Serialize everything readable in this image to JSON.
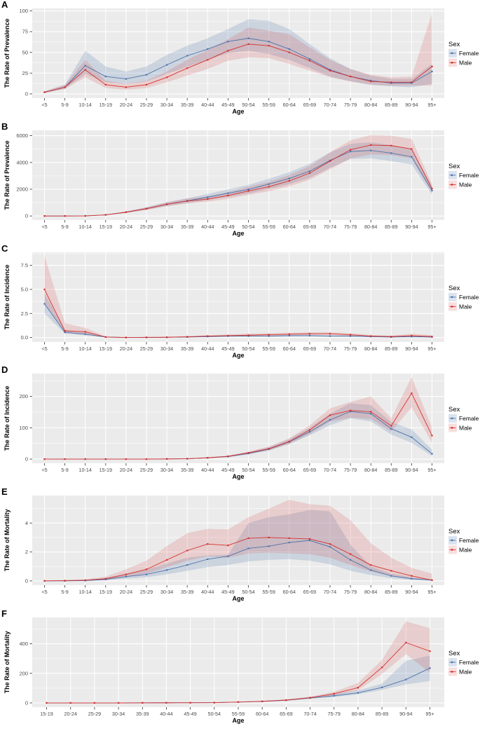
{
  "figure_title": "",
  "legend": {
    "title": "Sex",
    "items": [
      {
        "label": "Female"
      },
      {
        "label": "Male"
      }
    ]
  },
  "colors": {
    "female_line": "#4D74AB",
    "male_line": "#D62F2F",
    "female_ribbon": "rgba(77,116,171,0.20)",
    "male_ribbon": "rgba(214,47,47,0.16)",
    "panel_bg": "#EBEBEB",
    "grid": "#FFFFFF",
    "tick_text": "#4D4D4D",
    "axis_text": "#000000"
  },
  "chart_data": [
    {
      "panel": "A",
      "type": "line",
      "xlabel": "Age",
      "ylabel": "The Rate of Prevalence",
      "categories": [
        "<5",
        "5-9",
        "10-14",
        "15-19",
        "20-24",
        "25-29",
        "30-34",
        "35-39",
        "40-44",
        "45-49",
        "50-54",
        "55-59",
        "60-64",
        "65-69",
        "70-74",
        "75-79",
        "80-84",
        "85-89",
        "90-94",
        "95+"
      ],
      "yticks": [
        0,
        25,
        50,
        75,
        100
      ],
      "ytick_labels": [
        "0",
        "25",
        "50",
        "75",
        "100"
      ],
      "ylim": [
        -5,
        103
      ],
      "series": [
        {
          "name": "Female",
          "values": [
            2,
            8,
            34,
            21,
            18,
            23,
            35,
            46,
            54,
            63,
            67,
            63,
            54,
            42,
            29,
            21,
            16,
            13,
            13,
            27
          ],
          "lower": [
            1,
            6,
            24,
            14,
            12,
            15,
            24,
            33,
            41,
            49,
            52,
            48,
            41,
            31,
            21,
            15,
            11,
            9,
            8,
            12
          ],
          "upper": [
            3,
            11,
            52,
            33,
            27,
            33,
            47,
            58,
            67,
            78,
            90,
            88,
            78,
            60,
            43,
            30,
            22,
            18,
            18,
            36
          ]
        },
        {
          "name": "Male",
          "values": [
            2,
            8,
            29,
            11,
            8,
            11,
            20,
            31,
            41,
            52,
            60,
            58,
            50,
            40,
            28,
            21,
            15,
            14,
            14,
            33
          ],
          "lower": [
            1,
            6,
            20,
            7,
            5,
            7,
            14,
            22,
            30,
            40,
            44,
            43,
            36,
            28,
            20,
            15,
            11,
            10,
            10,
            10
          ],
          "upper": [
            3,
            11,
            41,
            16,
            12,
            16,
            27,
            41,
            53,
            66,
            80,
            76,
            72,
            56,
            41,
            30,
            23,
            20,
            21,
            97
          ]
        }
      ]
    },
    {
      "panel": "B",
      "type": "line",
      "xlabel": "Age",
      "ylabel": "The Rate of Prevalence",
      "categories": [
        "<5",
        "5-9",
        "10-14",
        "15-19",
        "20-24",
        "25-29",
        "30-34",
        "35-39",
        "40-44",
        "45-49",
        "50-54",
        "55-59",
        "60-64",
        "65-69",
        "70-74",
        "75-79",
        "80-84",
        "85-89",
        "90-94",
        "95+"
      ],
      "yticks": [
        0,
        2000,
        4000,
        6000
      ],
      "ytick_labels": [
        "0",
        "2000",
        "4000",
        "6000"
      ],
      "ylim": [
        -300,
        6400
      ],
      "series": [
        {
          "name": "Female",
          "values": [
            0,
            0,
            5,
            80,
            280,
            550,
            880,
            1130,
            1400,
            1700,
            1980,
            2380,
            2800,
            3350,
            4150,
            4820,
            4900,
            4700,
            4420,
            1900
          ],
          "lower": [
            0,
            0,
            4,
            65,
            230,
            460,
            740,
            950,
            1180,
            1440,
            1680,
            2020,
            2380,
            2850,
            3600,
            4250,
            4300,
            4100,
            3850,
            1600
          ],
          "upper": [
            0,
            0,
            6,
            95,
            330,
            650,
            1030,
            1320,
            1640,
            1990,
            2320,
            2780,
            3270,
            3900,
            4750,
            5400,
            5500,
            5300,
            5000,
            2250
          ]
        },
        {
          "name": "Male",
          "values": [
            0,
            0,
            5,
            80,
            280,
            545,
            870,
            1120,
            1260,
            1520,
            1870,
            2180,
            2620,
            3200,
            4100,
            4950,
            5300,
            5260,
            5000,
            2050
          ],
          "lower": [
            0,
            0,
            4,
            65,
            230,
            455,
            730,
            940,
            1060,
            1280,
            1580,
            1840,
            2210,
            2700,
            3500,
            4300,
            4600,
            4550,
            4300,
            1750
          ],
          "upper": [
            0,
            0,
            6,
            95,
            330,
            640,
            1020,
            1310,
            1470,
            1780,
            2180,
            2540,
            3050,
            3720,
            4750,
            5650,
            6050,
            6000,
            5750,
            2400
          ]
        }
      ]
    },
    {
      "panel": "C",
      "type": "line",
      "xlabel": "Age",
      "ylabel": "The Rate of Incidence",
      "categories": [
        "<5",
        "5-9",
        "10-14",
        "15-19",
        "20-24",
        "25-29",
        "30-34",
        "35-39",
        "40-44",
        "45-49",
        "50-54",
        "55-59",
        "60-64",
        "65-69",
        "70-74",
        "75-79",
        "80-84",
        "85-89",
        "90-94",
        "95+"
      ],
      "yticks": [
        0,
        2.5,
        5,
        7.5
      ],
      "ytick_labels": [
        "0.0",
        "2.5",
        "5.0",
        "7.5"
      ],
      "ylim": [
        -0.45,
        8.85
      ],
      "series": [
        {
          "name": "Female",
          "values": [
            3.5,
            0.55,
            0.35,
            0.05,
            0.01,
            0.01,
            0.02,
            0.05,
            0.1,
            0.15,
            0.15,
            0.15,
            0.2,
            0.2,
            0.15,
            0.15,
            0.1,
            0.05,
            0.1,
            0.05
          ],
          "lower": [
            2.5,
            0.4,
            0.22,
            0.02,
            0,
            0,
            0,
            0.02,
            0.05,
            0.08,
            0.1,
            0.1,
            0.12,
            0.12,
            0.1,
            0.08,
            0.05,
            0.02,
            0.03,
            0.01
          ],
          "upper": [
            4.6,
            0.8,
            0.55,
            0.1,
            0.03,
            0.03,
            0.05,
            0.1,
            0.17,
            0.24,
            0.25,
            0.25,
            0.3,
            0.3,
            0.25,
            0.24,
            0.18,
            0.12,
            0.2,
            0.15
          ]
        },
        {
          "name": "Male",
          "values": [
            5,
            0.7,
            0.6,
            0.05,
            0.01,
            0.02,
            0.03,
            0.08,
            0.15,
            0.2,
            0.25,
            0.3,
            0.35,
            0.4,
            0.4,
            0.3,
            0.15,
            0.1,
            0.2,
            0.1
          ],
          "lower": [
            3.6,
            0.5,
            0.35,
            0.02,
            0,
            0,
            0.01,
            0.04,
            0.08,
            0.12,
            0.16,
            0.2,
            0.25,
            0.28,
            0.28,
            0.2,
            0.08,
            0.04,
            0.08,
            0.02
          ],
          "upper": [
            8.5,
            1.5,
            1,
            0.12,
            0.04,
            0.05,
            0.08,
            0.15,
            0.25,
            0.32,
            0.4,
            0.45,
            0.5,
            0.55,
            0.55,
            0.45,
            0.28,
            0.2,
            0.4,
            0.25
          ]
        }
      ]
    },
    {
      "panel": "D",
      "type": "line",
      "xlabel": "Age",
      "ylabel": "The Rate of Incidence",
      "categories": [
        "<5",
        "5-9",
        "10-14",
        "15-19",
        "20-24",
        "25-29",
        "30-34",
        "35-39",
        "40-44",
        "45-49",
        "50-54",
        "55-59",
        "60-64",
        "65-69",
        "70-74",
        "75-79",
        "80-84",
        "85-89",
        "90-94",
        "95+"
      ],
      "yticks": [
        0,
        100,
        200
      ],
      "ytick_labels": [
        "0",
        "100",
        "200"
      ],
      "ylim": [
        -13,
        273
      ],
      "series": [
        {
          "name": "Female",
          "values": [
            0,
            0,
            0,
            0,
            0,
            0,
            0.5,
            1,
            4,
            8,
            18,
            32,
            55,
            87,
            125,
            152,
            145,
            97,
            70,
            17
          ],
          "lower": [
            0,
            0,
            0,
            0,
            0,
            0,
            0,
            0.5,
            3,
            6,
            15,
            27,
            48,
            76,
            108,
            130,
            120,
            78,
            52,
            10
          ],
          "upper": [
            0,
            0,
            0,
            0,
            0,
            0,
            1,
            2,
            5,
            10,
            22,
            38,
            64,
            100,
            145,
            178,
            172,
            118,
            95,
            30
          ]
        },
        {
          "name": "Male",
          "values": [
            0,
            0,
            0,
            0,
            0,
            0,
            0.5,
            1,
            4,
            9,
            20,
            33,
            56,
            93,
            140,
            155,
            151,
            106,
            210,
            75
          ],
          "lower": [
            0,
            0,
            0,
            0,
            0,
            0,
            0,
            0.5,
            3,
            7,
            16,
            28,
            48,
            80,
            120,
            132,
            128,
            88,
            165,
            52
          ],
          "upper": [
            0,
            0,
            0,
            0,
            0,
            0,
            1,
            2,
            6,
            11,
            24,
            40,
            66,
            108,
            162,
            182,
            200,
            130,
            262,
            100
          ]
        }
      ]
    },
    {
      "panel": "E",
      "type": "line",
      "xlabel": "Age",
      "ylabel": "The Rate of Mortality",
      "categories": [
        "<5",
        "5-9",
        "10-14",
        "15-19",
        "20-24",
        "25-29",
        "30-34",
        "35-39",
        "40-44",
        "45-49",
        "50-54",
        "55-59",
        "60-64",
        "65-69",
        "70-74",
        "75-79",
        "80-84",
        "85-89",
        "90-94",
        "95+"
      ],
      "yticks": [
        0,
        2,
        4
      ],
      "ytick_labels": [
        "0",
        "2",
        "4"
      ],
      "ylim": [
        -0.29,
        5.9
      ],
      "series": [
        {
          "name": "Female",
          "values": [
            0,
            0,
            0.02,
            0.1,
            0.3,
            0.45,
            0.75,
            1.1,
            1.5,
            1.7,
            2.25,
            2.4,
            2.65,
            2.8,
            2.35,
            1.45,
            0.75,
            0.35,
            0.15,
            0.05
          ],
          "lower": [
            0,
            0,
            0,
            0.05,
            0.15,
            0.25,
            0.45,
            0.7,
            0.95,
            1.1,
            1.35,
            1.45,
            1.5,
            1.4,
            1.15,
            0.7,
            0.4,
            0.18,
            0.07,
            0.02
          ],
          "upper": [
            0,
            0,
            0.05,
            0.2,
            0.5,
            0.8,
            1.2,
            1.6,
            1.75,
            1.8,
            4,
            4.4,
            4.6,
            4.9,
            4.8,
            2.5,
            1,
            0.5,
            0.25,
            0.1
          ]
        },
        {
          "name": "Male",
          "values": [
            0,
            0.02,
            0.05,
            0.15,
            0.45,
            0.8,
            1.45,
            2.1,
            2.55,
            2.45,
            2.95,
            3,
            2.95,
            2.9,
            2.55,
            1.85,
            1.1,
            0.7,
            0.35,
            0.05
          ],
          "lower": [
            0,
            0,
            0.02,
            0.08,
            0.25,
            0.5,
            0.95,
            1.4,
            1.7,
            1.6,
            1.9,
            1.95,
            1.9,
            1.85,
            1.6,
            1.1,
            0.65,
            0.35,
            0.15,
            0.03
          ],
          "upper": [
            0,
            0.05,
            0.1,
            0.3,
            0.8,
            1.4,
            2.4,
            3.3,
            3.6,
            3.55,
            4.4,
            5,
            5.6,
            5.3,
            5.2,
            4.2,
            2.6,
            1.6,
            0.9,
            0.5
          ]
        }
      ]
    },
    {
      "panel": "F",
      "type": "line",
      "xlabel": "Age",
      "ylabel": "The Rate of Mortality",
      "categories": [
        "15-19",
        "20-24",
        "25-29",
        "30-34",
        "35-39",
        "40-44",
        "45-49",
        "50-54",
        "55-59",
        "60-64",
        "65-69",
        "70-74",
        "75-79",
        "80-84",
        "85-89",
        "90-94",
        "95+"
      ],
      "yticks": [
        0,
        200,
        400
      ],
      "ytick_labels": [
        "0",
        "200",
        "400"
      ],
      "ylim": [
        -28,
        578
      ],
      "series": [
        {
          "name": "Female",
          "values": [
            0,
            0,
            0,
            0,
            0.5,
            1,
            1.5,
            2,
            5,
            10,
            18,
            33,
            48,
            68,
            105,
            158,
            235
          ],
          "lower": [
            0,
            0,
            0,
            0,
            0,
            0.5,
            1,
            1.5,
            4,
            8,
            15,
            28,
            40,
            58,
            88,
            125,
            148
          ],
          "upper": [
            0,
            0,
            0,
            0,
            1,
            2,
            2.5,
            3.5,
            7,
            13,
            23,
            40,
            60,
            85,
            130,
            285,
            320
          ]
        },
        {
          "name": "Male",
          "values": [
            0,
            0,
            0,
            0,
            0.5,
            1,
            1.5,
            2,
            6,
            11,
            19,
            35,
            62,
            103,
            240,
            408,
            350
          ],
          "lower": [
            0,
            0,
            0,
            0,
            0,
            0.5,
            1,
            1.5,
            5,
            9,
            16,
            30,
            52,
            85,
            195,
            330,
            205
          ],
          "upper": [
            0,
            0,
            0,
            0,
            1,
            2,
            2.5,
            4,
            8,
            14,
            24,
            42,
            75,
            135,
            290,
            552,
            505
          ]
        }
      ]
    }
  ]
}
